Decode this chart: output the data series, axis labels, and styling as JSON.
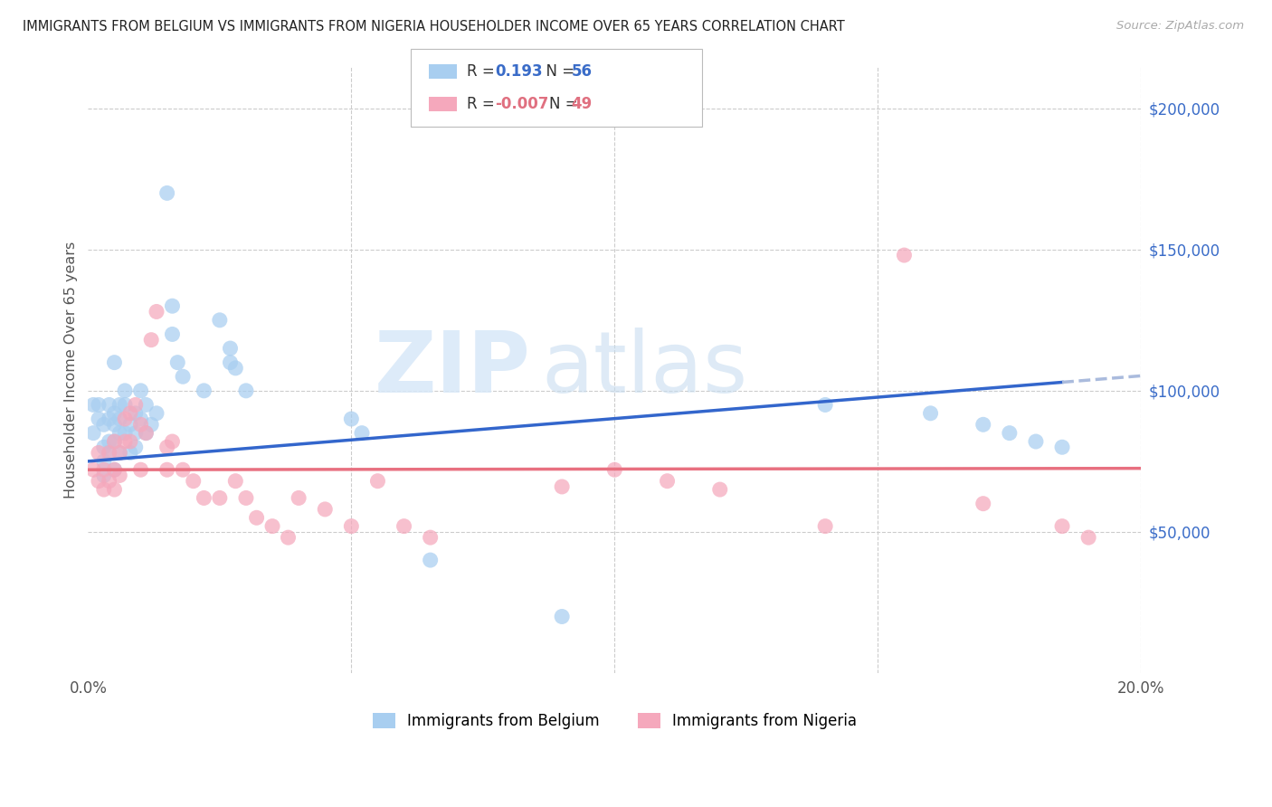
{
  "title": "IMMIGRANTS FROM BELGIUM VS IMMIGRANTS FROM NIGERIA HOUSEHOLDER INCOME OVER 65 YEARS CORRELATION CHART",
  "source": "Source: ZipAtlas.com",
  "ylabel": "Householder Income Over 65 years",
  "xlim": [
    0.0,
    0.2
  ],
  "ylim": [
    0,
    215000
  ],
  "yticks": [
    50000,
    100000,
    150000,
    200000
  ],
  "ytick_labels": [
    "$50,000",
    "$100,000",
    "$150,000",
    "$200,000"
  ],
  "xticks": [
    0.0,
    0.05,
    0.1,
    0.15,
    0.2
  ],
  "xtick_labels": [
    "0.0%",
    "",
    "",
    "",
    "20.0%"
  ],
  "color_belgium": "#a8cef0",
  "color_nigeria": "#f5a8bc",
  "color_line_belgium": "#3366cc",
  "color_line_belgium_dash": "#aabbdd",
  "color_line_nigeria": "#e87080",
  "background_color": "#ffffff",
  "grid_color": "#cccccc",
  "belgium_x": [
    0.001,
    0.001,
    0.002,
    0.002,
    0.003,
    0.003,
    0.003,
    0.003,
    0.004,
    0.004,
    0.004,
    0.004,
    0.005,
    0.005,
    0.005,
    0.005,
    0.005,
    0.006,
    0.006,
    0.006,
    0.006,
    0.007,
    0.007,
    0.007,
    0.008,
    0.008,
    0.009,
    0.009,
    0.009,
    0.01,
    0.01,
    0.011,
    0.011,
    0.012,
    0.013,
    0.015,
    0.016,
    0.016,
    0.017,
    0.018,
    0.022,
    0.025,
    0.027,
    0.027,
    0.028,
    0.03,
    0.05,
    0.052,
    0.065,
    0.09,
    0.14,
    0.16,
    0.17,
    0.175,
    0.18,
    0.185
  ],
  "belgium_y": [
    95000,
    85000,
    90000,
    95000,
    88000,
    80000,
    75000,
    70000,
    95000,
    90000,
    82000,
    78000,
    110000,
    92000,
    88000,
    82000,
    72000,
    95000,
    90000,
    85000,
    78000,
    100000,
    95000,
    85000,
    88000,
    78000,
    92000,
    85000,
    80000,
    100000,
    90000,
    95000,
    85000,
    88000,
    92000,
    170000,
    130000,
    120000,
    110000,
    105000,
    100000,
    125000,
    115000,
    110000,
    108000,
    100000,
    90000,
    85000,
    40000,
    20000,
    95000,
    92000,
    88000,
    85000,
    82000,
    80000
  ],
  "nigeria_x": [
    0.001,
    0.002,
    0.002,
    0.003,
    0.003,
    0.004,
    0.004,
    0.005,
    0.005,
    0.005,
    0.006,
    0.006,
    0.007,
    0.007,
    0.008,
    0.008,
    0.009,
    0.01,
    0.01,
    0.011,
    0.012,
    0.013,
    0.015,
    0.015,
    0.016,
    0.018,
    0.02,
    0.022,
    0.025,
    0.028,
    0.03,
    0.032,
    0.035,
    0.038,
    0.04,
    0.045,
    0.05,
    0.055,
    0.06,
    0.065,
    0.09,
    0.1,
    0.11,
    0.12,
    0.14,
    0.155,
    0.17,
    0.185,
    0.19
  ],
  "nigeria_y": [
    72000,
    78000,
    68000,
    72000,
    65000,
    78000,
    68000,
    82000,
    72000,
    65000,
    78000,
    70000,
    90000,
    82000,
    92000,
    82000,
    95000,
    88000,
    72000,
    85000,
    118000,
    128000,
    80000,
    72000,
    82000,
    72000,
    68000,
    62000,
    62000,
    68000,
    62000,
    55000,
    52000,
    48000,
    62000,
    58000,
    52000,
    68000,
    52000,
    48000,
    66000,
    72000,
    68000,
    65000,
    52000,
    148000,
    60000,
    52000,
    48000
  ]
}
